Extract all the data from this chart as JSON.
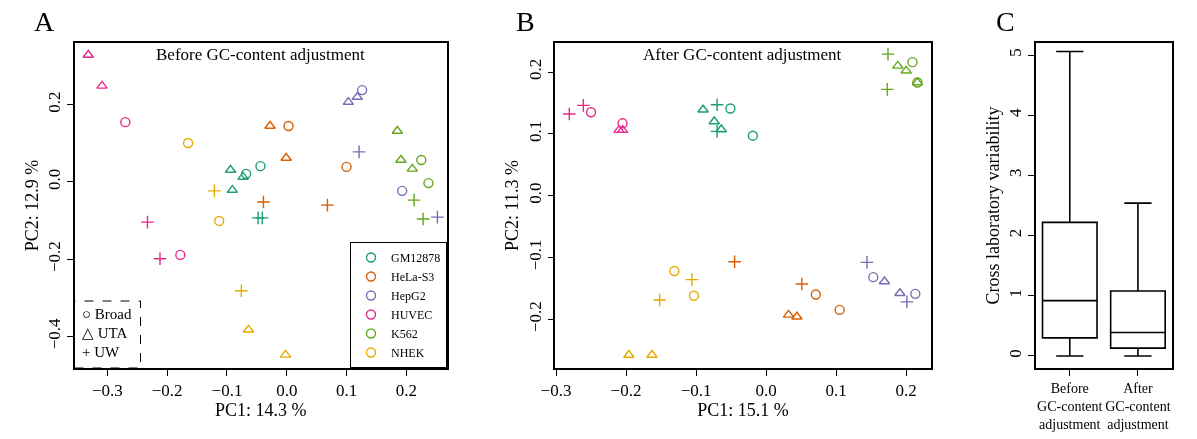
{
  "chart_data": [
    {
      "type": "scatter",
      "title": "Before GC-content adjustment",
      "xlabel": "PC1: 14.3 %",
      "ylabel": "PC2: 12.9 %",
      "annotations": [
        "A",
        "○ Broad",
        "△ UTA",
        "+ UW"
      ],
      "xlim": [
        -0.355,
        0.268
      ],
      "ylim": [
        -0.482,
        0.36
      ],
      "xticks": [
        -0.3,
        -0.2,
        -0.1,
        {
          "value": 0,
          "label": "0.0"
        },
        0.1,
        0.2
      ],
      "yticks": [
        -0.4,
        -0.2,
        {
          "value": 0,
          "label": "0.0"
        },
        0.2
      ],
      "legend": "bottom right",
      "series": [
        {
          "name": "GM12878",
          "color": "#1b9e77",
          "x": [
            -0.068,
            -0.044,
            -0.094,
            -0.073,
            -0.091,
            -0.048,
            -0.041
          ],
          "values": [
            0.021,
            0.041,
            0.031,
            0.013,
            -0.021,
            -0.093,
            -0.093
          ],
          "marker": [
            "circle",
            "circle",
            "triangle",
            "triangle",
            "triangle",
            "cross",
            "cross"
          ]
        },
        {
          "name": "HeLa-S3",
          "color": "#d95f02",
          "x": [
            0.003,
            0.1,
            -0.028,
            -0.001,
            -0.039,
            0.068
          ],
          "values": [
            0.145,
            0.039,
            0.145,
            0.062,
            -0.052,
            -0.06
          ],
          "marker": [
            "circle",
            "circle",
            "triangle",
            "triangle",
            "cross",
            "cross"
          ]
        },
        {
          "name": "HepG2",
          "color": "#7570b3",
          "x": [
            0.126,
            0.193,
            0.103,
            0.118,
            0.121,
            0.252
          ],
          "values": [
            0.238,
            -0.023,
            0.207,
            0.22,
            0.078,
            -0.091
          ],
          "marker": [
            "circle",
            "circle",
            "triangle",
            "triangle",
            "cross",
            "cross"
          ]
        },
        {
          "name": "HUVEC",
          "color": "#e7298a",
          "x": [
            -0.27,
            -0.178,
            -0.332,
            -0.309,
            -0.233,
            -0.212
          ],
          "values": [
            0.155,
            -0.189,
            0.329,
            0.249,
            -0.104,
            -0.199
          ],
          "marker": [
            "circle",
            "circle",
            "triangle",
            "triangle",
            "cross",
            "cross"
          ]
        },
        {
          "name": "K562",
          "color": "#66a61e",
          "x": [
            0.225,
            0.237,
            0.185,
            0.191,
            0.21,
            0.213,
            0.228
          ],
          "values": [
            0.057,
            -0.003,
            0.132,
            0.057,
            0.034,
            -0.047,
            -0.096
          ],
          "marker": [
            "circle",
            "circle",
            "triangle",
            "triangle",
            "triangle",
            "cross",
            "cross"
          ]
        },
        {
          "name": "NHEK",
          "color": "#e6ab02",
          "x": [
            -0.165,
            -0.113,
            -0.064,
            -0.002,
            -0.121,
            -0.076
          ],
          "values": [
            0.101,
            -0.101,
            -0.383,
            -0.448,
            -0.023,
            -0.282
          ],
          "marker": [
            "circle",
            "circle",
            "triangle",
            "triangle",
            "cross",
            "cross"
          ]
        }
      ]
    },
    {
      "type": "scatter",
      "title": "After GC-content adjustment",
      "xlabel": "PC1: 15.1 %",
      "ylabel": "PC2: 11.3 %",
      "annotations": [
        "B"
      ],
      "xlim": [
        -0.301,
        0.235
      ],
      "ylim": [
        -0.279,
        0.247
      ],
      "xticks": [
        -0.3,
        -0.2,
        -0.1,
        {
          "value": 0,
          "label": "0.0"
        },
        0.1,
        0.2
      ],
      "yticks": [
        -0.2,
        -0.1,
        {
          "value": 0,
          "label": "0.0"
        },
        0.1,
        0.2
      ],
      "series": [
        {
          "color": "#1b9e77",
          "x": [
            -0.051,
            -0.019,
            -0.09,
            -0.074,
            -0.064,
            -0.07,
            -0.07
          ],
          "values": [
            0.141,
            0.097,
            0.139,
            0.12,
            0.107,
            0.147,
            0.104
          ],
          "marker": [
            "circle",
            "circle",
            "triangle",
            "triangle",
            "triangle",
            "cross",
            "cross"
          ]
        },
        {
          "color": "#d95f02",
          "x": [
            0.071,
            0.105,
            0.032,
            0.044,
            -0.045,
            0.051
          ],
          "values": [
            -0.16,
            -0.185,
            -0.193,
            -0.196,
            -0.107,
            -0.143
          ],
          "marker": [
            "circle",
            "circle",
            "triangle",
            "triangle",
            "cross",
            "cross"
          ]
        },
        {
          "color": "#7570b3",
          "x": [
            0.153,
            0.213,
            0.169,
            0.191,
            0.144,
            0.201
          ],
          "values": [
            -0.132,
            -0.159,
            -0.139,
            -0.158,
            -0.108,
            -0.172
          ],
          "marker": [
            "circle",
            "circle",
            "triangle",
            "triangle",
            "cross",
            "cross"
          ]
        },
        {
          "color": "#e7298a",
          "x": [
            -0.25,
            -0.205,
            -0.21,
            -0.205,
            -0.281,
            -0.261
          ],
          "values": [
            0.135,
            0.117,
            0.106,
            0.106,
            0.132,
            0.146
          ],
          "marker": [
            "circle",
            "circle",
            "triangle",
            "triangle",
            "cross",
            "cross"
          ]
        },
        {
          "color": "#66a61e",
          "x": [
            0.209,
            0.216,
            0.188,
            0.2,
            0.216,
            0.174,
            0.173
          ],
          "values": [
            0.216,
            0.183,
            0.21,
            0.202,
            0.183,
            0.229,
            0.172
          ],
          "marker": [
            "circle",
            "circle",
            "triangle",
            "triangle",
            "triangle",
            "cross",
            "cross"
          ]
        },
        {
          "color": "#e6ab02",
          "x": [
            -0.131,
            -0.103,
            -0.196,
            -0.163,
            -0.152,
            -0.106
          ],
          "values": [
            -0.122,
            -0.162,
            -0.258,
            -0.258,
            -0.169,
            -0.136
          ],
          "marker": [
            "circle",
            "circle",
            "triangle",
            "triangle",
            "cross",
            "cross"
          ]
        }
      ]
    },
    {
      "type": "box",
      "ylabel": "Cross laboratory variability",
      "annotations": [
        "C"
      ],
      "categories": [
        "Before\nGC-content\nadjustment",
        "After\nGC-content\nadjustment"
      ],
      "boxes": [
        {
          "low": 0,
          "q1": 0.3,
          "median": 0.92,
          "q3": 2.22,
          "high": 5.06
        },
        {
          "low": 0,
          "q1": 0.13,
          "median": 0.39,
          "q3": 1.08,
          "high": 2.54
        }
      ],
      "ylim": [
        -0.2,
        5.2
      ],
      "yticks": [
        0,
        1,
        2,
        3,
        4,
        5
      ]
    }
  ]
}
